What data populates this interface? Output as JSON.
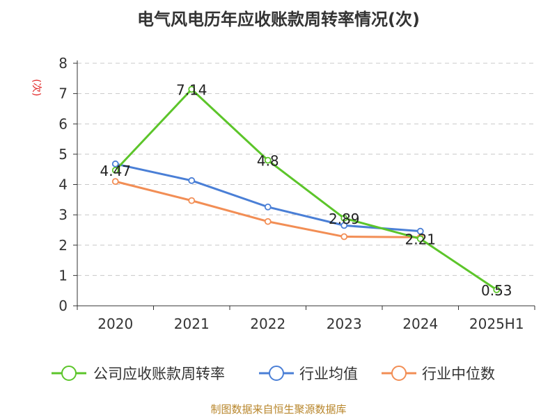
{
  "chart_data": {
    "type": "line",
    "title": "电气风电历年应收账款周转率情况(次)",
    "ylabel": "(次)",
    "xlabel": "",
    "categories": [
      "2020",
      "2021",
      "2022",
      "2023",
      "2024",
      "2025H1"
    ],
    "ylim": [
      0,
      8
    ],
    "yticks": [
      "0",
      "1",
      "2",
      "3",
      "4",
      "5",
      "6",
      "7",
      "8"
    ],
    "grid": "horizontal-dashed",
    "legend_position": "bottom",
    "series": [
      {
        "name": "公司应收账款周转率",
        "color": "#5cc52a",
        "values": [
          4.47,
          7.14,
          4.8,
          2.89,
          2.21,
          0.53
        ],
        "labels": [
          "4.47",
          "7.14",
          "4.8",
          "2.89",
          "2.21",
          "0.53"
        ]
      },
      {
        "name": "行业均值",
        "color": "#4a7fd6",
        "values": [
          4.68,
          4.13,
          3.26,
          2.65,
          2.46,
          null
        ]
      },
      {
        "name": "行业中位数",
        "color": "#f28e55",
        "values": [
          4.1,
          3.47,
          2.78,
          2.28,
          2.26,
          null
        ]
      }
    ]
  },
  "footer": {
    "source": "制图数据来自恒生聚源数据库"
  }
}
